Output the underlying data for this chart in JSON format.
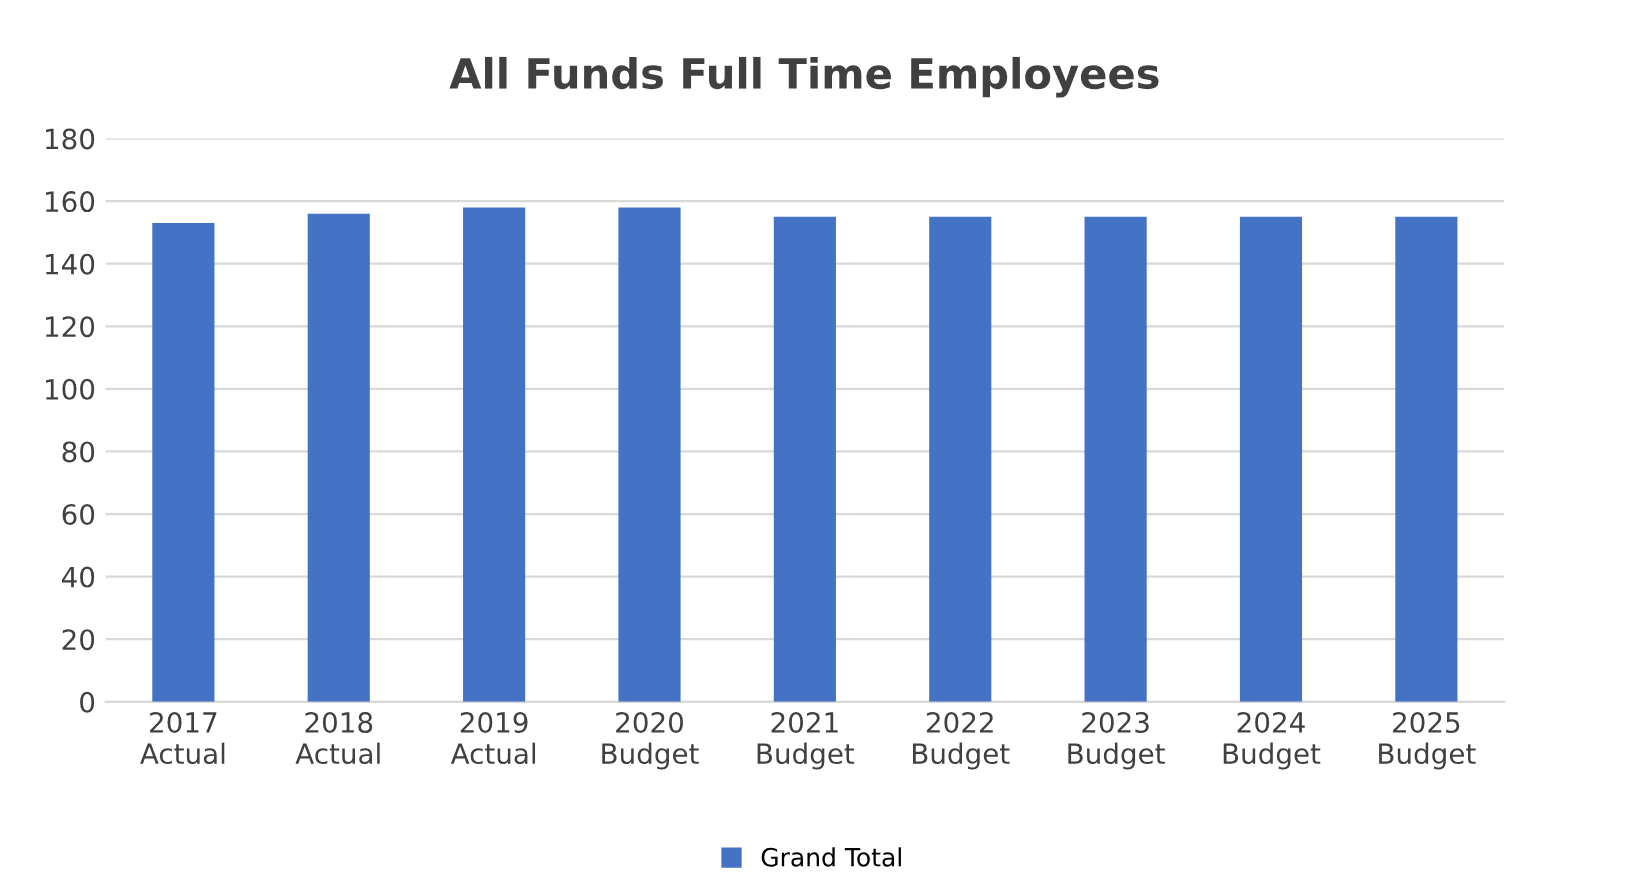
{
  "chart_data": {
    "type": "bar",
    "title": "All Funds Full Time Employees",
    "categories": [
      "2017\nActual",
      "2018\nActual",
      "2019\nActual",
      "2020\nBudget",
      "2021\nBudget",
      "2022\nBudget",
      "2023\nBudget",
      "2024\nBudget",
      "2025\nBudget"
    ],
    "series": [
      {
        "name": "Grand Total",
        "color": "#4472c4",
        "values": [
          153,
          156,
          158,
          158,
          155,
          155,
          155,
          155,
          155
        ]
      }
    ],
    "ylim": [
      0,
      180
    ],
    "yticks": [
      0,
      20,
      40,
      60,
      80,
      100,
      120,
      140,
      160,
      180
    ],
    "grid": "y",
    "legend": "bottom"
  }
}
